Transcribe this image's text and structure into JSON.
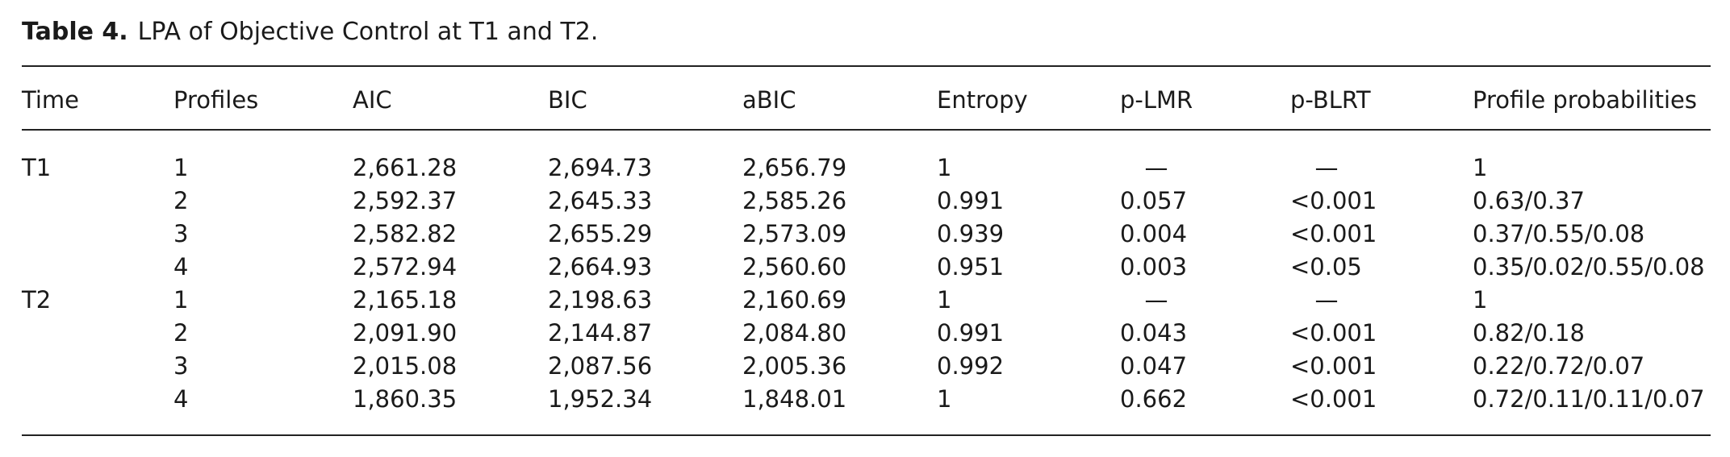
{
  "caption": {
    "label": "Table 4.",
    "text": "LPA of Objective Control at T1 and T2."
  },
  "table": {
    "headers": [
      "Time",
      "Profiles",
      "AIC",
      "BIC",
      "aBIC",
      "Entropy",
      "p-LMR",
      "p-BLRT",
      "Profile probabilities"
    ],
    "groups": [
      {
        "time": "T1",
        "rows": [
          [
            "1",
            "2,661.28",
            "2,694.73",
            "2,656.79",
            "1",
            "—",
            "—",
            "1"
          ],
          [
            "2",
            "2,592.37",
            "2,645.33",
            "2,585.26",
            "0.991",
            "0.057",
            "<0.001",
            "0.63/0.37"
          ],
          [
            "3",
            "2,582.82",
            "2,655.29",
            "2,573.09",
            "0.939",
            "0.004",
            "<0.001",
            "0.37/0.55/0.08"
          ],
          [
            "4",
            "2,572.94",
            "2,664.93",
            "2,560.60",
            "0.951",
            "0.003",
            "<0.05",
            "0.35/0.02/0.55/0.08"
          ]
        ]
      },
      {
        "time": "T2",
        "rows": [
          [
            "1",
            "2,165.18",
            "2,198.63",
            "2,160.69",
            "1",
            "—",
            "—",
            "1"
          ],
          [
            "2",
            "2,091.90",
            "2,144.87",
            "2,084.80",
            "0.991",
            "0.043",
            "<0.001",
            "0.82/0.18"
          ],
          [
            "3",
            "2,015.08",
            "2,087.56",
            "2,005.36",
            "0.992",
            "0.047",
            "<0.001",
            "0.22/0.72/0.07"
          ],
          [
            "4",
            "1,860.35",
            "1,952.34",
            "1,848.01",
            "1",
            "0.662",
            "<0.001",
            "0.72/0.11/0.11/0.07"
          ]
        ]
      }
    ]
  }
}
